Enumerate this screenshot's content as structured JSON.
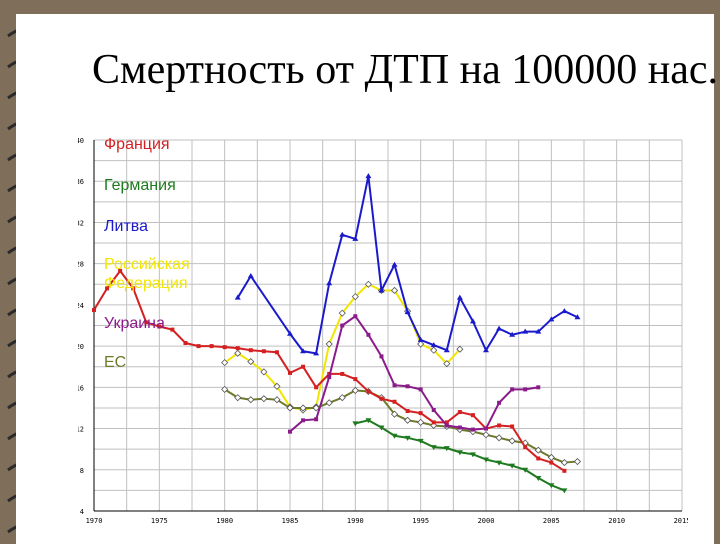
{
  "title": "Смертность от ДТП на 100000 нас.",
  "colors": {
    "background": "#7f6e5a",
    "france": "#d42020",
    "germany": "#1e7a1e",
    "lithuania": "#1a1acc",
    "russia": "#f2e600",
    "ukraine": "#8b1a8b",
    "eu": "#6e7a2a"
  },
  "chart_data": {
    "type": "line",
    "xlim": [
      1970,
      2010
    ],
    "ylim": [
      4,
      40
    ],
    "x_ticks": [
      "1970",
      "1975",
      "1980",
      "1985",
      "1990",
      "1995",
      "2000",
      "2005",
      "2010",
      "2015"
    ],
    "y_ticks": [
      "4",
      "8",
      "12",
      "16",
      "20",
      "24",
      "28",
      "32",
      "36",
      "40"
    ],
    "grid": true,
    "series": [
      {
        "name": "Франция",
        "color": "#d42020",
        "marker": "square",
        "x": [
          1970,
          1971,
          1972,
          1973,
          1974,
          1975,
          1976,
          1977,
          1978,
          1979,
          1980,
          1981,
          1982,
          1983,
          1984,
          1985,
          1986,
          1987,
          1988,
          1989,
          1990,
          1991,
          1992,
          1993,
          1994,
          1995,
          1996,
          1997,
          1998,
          1999,
          2000,
          2001,
          2002,
          2003,
          2004,
          2005,
          2006
        ],
        "y": [
          23.5,
          25.6,
          27.3,
          25.6,
          22.3,
          21.9,
          21.6,
          20.3,
          20.0,
          20.0,
          19.9,
          19.8,
          19.6,
          19.5,
          19.4,
          17.4,
          18.0,
          16.0,
          17.3,
          17.3,
          16.8,
          15.6,
          14.9,
          14.6,
          13.7,
          13.5,
          12.6,
          12.6,
          13.6,
          13.3,
          12.0,
          12.3,
          12.2,
          10.2,
          9.1,
          8.7,
          7.9
        ]
      },
      {
        "name": "Германия",
        "color": "#1e7a1e",
        "marker": "triangle-down",
        "x": [
          1990,
          1991,
          1992,
          1993,
          1994,
          1995,
          1996,
          1997,
          1998,
          1999,
          2000,
          2001,
          2002,
          2003,
          2004,
          2005,
          2006
        ],
        "y": [
          12.5,
          12.8,
          12.1,
          11.3,
          11.1,
          10.8,
          10.2,
          10.1,
          9.7,
          9.5,
          9.0,
          8.7,
          8.4,
          8.0,
          7.2,
          6.5,
          6.0
        ]
      },
      {
        "name": "Литва",
        "color": "#1a1acc",
        "marker": "triangle-up",
        "x": [
          1981,
          1982,
          1985,
          1986,
          1987,
          1988,
          1989,
          1990,
          1991,
          1992,
          1993,
          1994,
          1995,
          1996,
          1997,
          1998,
          1999,
          2000,
          2001,
          2002,
          2003,
          2004,
          2005,
          2006,
          2007
        ],
        "y": [
          24.7,
          26.8,
          21.2,
          19.5,
          19.3,
          26.1,
          30.8,
          30.4,
          36.5,
          25.4,
          27.9,
          23.3,
          20.6,
          20.1,
          19.6,
          24.7,
          22.4,
          19.6,
          21.7,
          21.1,
          21.4,
          21.4,
          22.6,
          23.4,
          22.8
        ]
      },
      {
        "name": "Российская Федерация",
        "color": "#f2e600",
        "marker": "diamond",
        "x": [
          1980,
          1981,
          1982,
          1983,
          1984,
          1985,
          1986,
          1987,
          1988,
          1989,
          1990,
          1991,
          1992,
          1993,
          1994,
          1995,
          1996,
          1997,
          1998
        ],
        "y": [
          18.4,
          19.3,
          18.5,
          17.5,
          16.1,
          14.1,
          13.8,
          14.1,
          20.2,
          23.2,
          24.8,
          26.0,
          25.4,
          25.4,
          23.4,
          20.2,
          19.6,
          18.3,
          19.7
        ]
      },
      {
        "name": "Украина",
        "color": "#8b1a8b",
        "marker": "square",
        "x": [
          1985,
          1986,
          1987,
          1988,
          1989,
          1990,
          1991,
          1992,
          1993,
          1994,
          1995,
          1996,
          1997,
          1998,
          1999,
          2000,
          2001,
          2002,
          2003,
          2004
        ],
        "y": [
          11.7,
          12.8,
          12.9,
          17.0,
          22.0,
          22.9,
          21.1,
          19.0,
          16.2,
          16.1,
          15.8,
          13.8,
          12.3,
          12.1,
          11.9,
          12.0,
          14.5,
          15.8,
          15.8,
          16.0
        ]
      },
      {
        "name": "ЕС",
        "color": "#6e7a2a",
        "marker": "diamond",
        "x": [
          1980,
          1981,
          1982,
          1983,
          1984,
          1985,
          1986,
          1987,
          1988,
          1989,
          1990,
          1991,
          1992,
          1993,
          1994,
          1995,
          1996,
          1997,
          1998,
          1999,
          2000,
          2001,
          2002,
          2003,
          2004,
          2005,
          2006,
          2007
        ],
        "y": [
          15.8,
          15.0,
          14.8,
          14.9,
          14.8,
          14.0,
          14.0,
          14.0,
          14.5,
          15.0,
          15.7,
          15.6,
          15.0,
          13.4,
          12.8,
          12.6,
          12.3,
          12.2,
          11.9,
          11.7,
          11.4,
          11.1,
          10.8,
          10.6,
          9.9,
          9.2,
          8.7,
          8.8
        ]
      }
    ],
    "legend": [
      "Франция",
      "Германия",
      "Литва",
      "Российская Федерация",
      "Украина",
      "ЕС"
    ],
    "legend_placement": "top-left inside"
  }
}
